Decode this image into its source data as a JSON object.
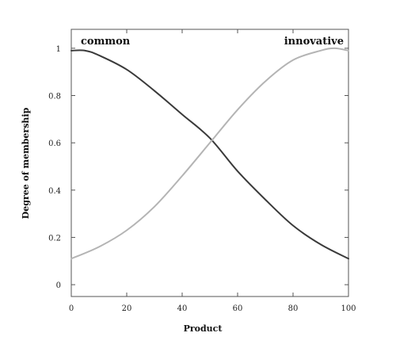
{
  "chart_data": {
    "type": "line",
    "xlabel": "Product",
    "ylabel": "Degree of membership",
    "xlim": [
      0,
      100
    ],
    "ylim": [
      -0.05,
      1.08
    ],
    "x_ticks": [
      0,
      20,
      40,
      60,
      80,
      100
    ],
    "y_ticks": [
      0,
      0.2,
      0.4,
      0.6,
      0.8,
      1
    ],
    "y_tick_labels": [
      "0",
      "0.2",
      "0.4",
      "0.6",
      "0.8",
      "1"
    ],
    "grid": false,
    "series": [
      {
        "name": "common",
        "color": "#3a3a3a",
        "x": [
          0,
          5,
          10,
          20,
          30,
          40,
          50,
          60,
          70,
          80,
          90,
          100
        ],
        "y": [
          0.99,
          0.99,
          0.97,
          0.91,
          0.82,
          0.72,
          0.62,
          0.48,
          0.36,
          0.25,
          0.17,
          0.11
        ]
      },
      {
        "name": "innovative",
        "color": "#b4b4b4",
        "x": [
          0,
          10,
          20,
          30,
          40,
          50,
          60,
          70,
          80,
          90,
          95,
          100
        ],
        "y": [
          0.11,
          0.16,
          0.23,
          0.33,
          0.46,
          0.6,
          0.74,
          0.86,
          0.95,
          0.99,
          1.0,
          0.99
        ]
      }
    ]
  }
}
